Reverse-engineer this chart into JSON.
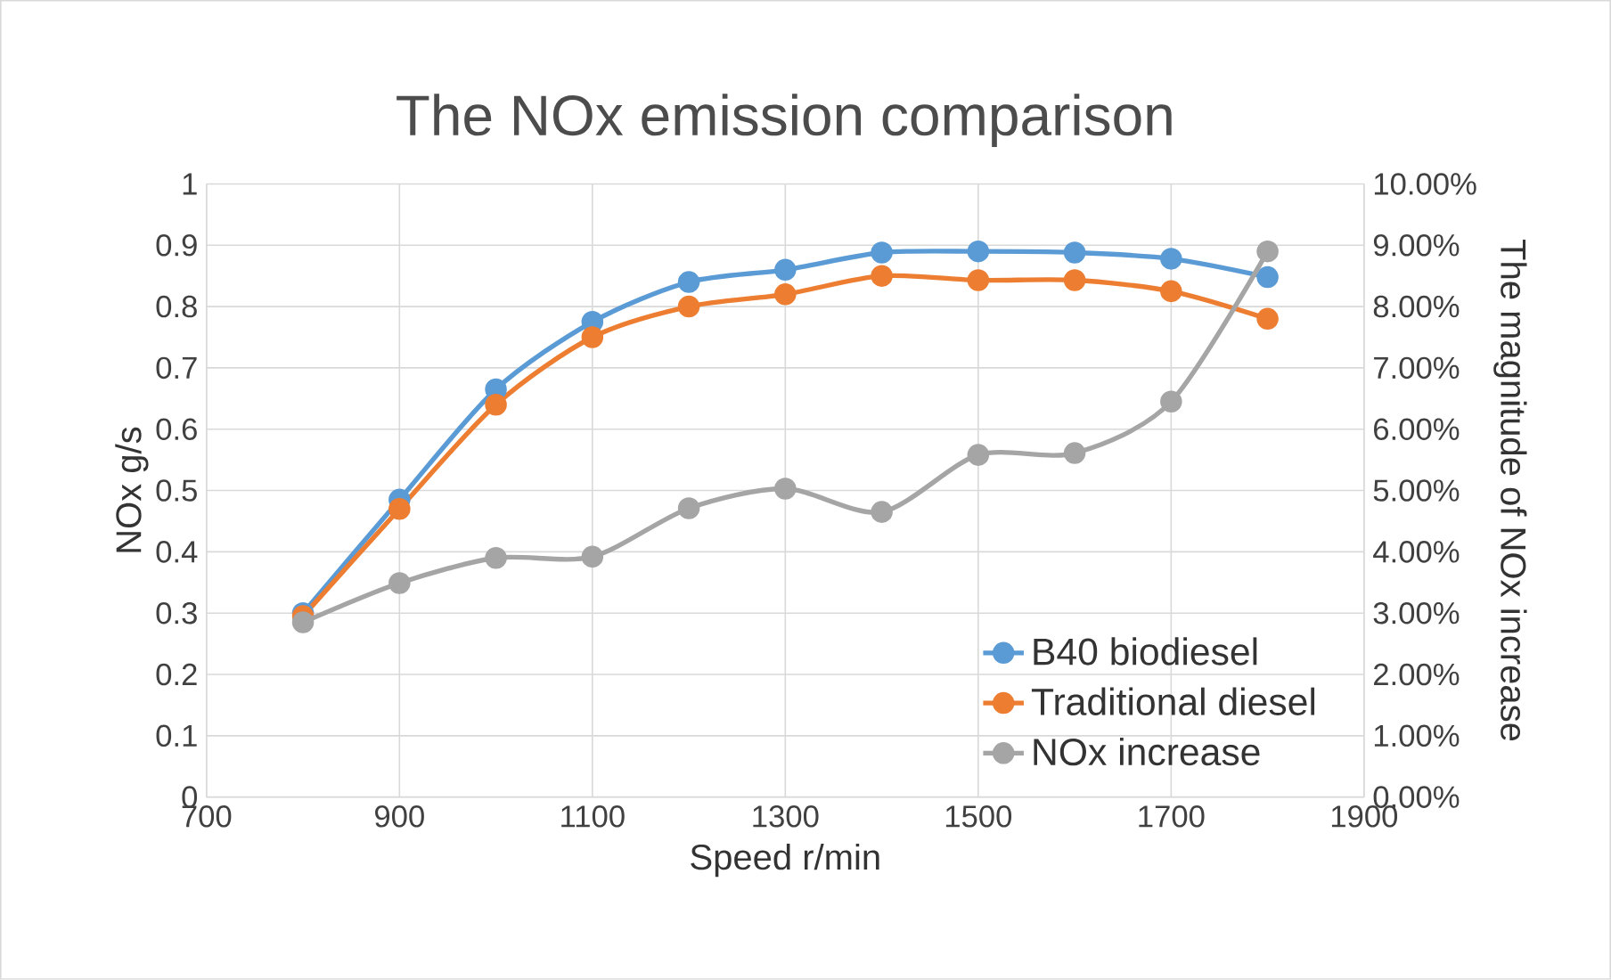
{
  "chart_data": {
    "type": "line",
    "title": "The NOx emission comparison",
    "xlabel": "Speed r/min",
    "ylabel": "NOx g/s",
    "y2label": "The magnitude of NOx increase",
    "x": [
      800,
      900,
      1000,
      1100,
      1200,
      1300,
      1400,
      1500,
      1600,
      1700,
      1800
    ],
    "series": [
      {
        "name": "B40 biodiesel",
        "color": "#5b9bd5",
        "values": [
          0.3,
          0.485,
          0.665,
          0.775,
          0.84,
          0.86,
          0.888,
          0.89,
          0.888,
          0.878,
          0.848
        ]
      },
      {
        "name": "Traditional diesel",
        "color": "#ed7d31",
        "values": [
          0.295,
          0.47,
          0.64,
          0.75,
          0.8,
          0.82,
          0.85,
          0.843,
          0.843,
          0.825,
          0.78
        ]
      },
      {
        "name": "NOx increase",
        "color": "#a5a5a5",
        "axis": "y2",
        "values": [
          2.85,
          3.49,
          3.9,
          3.92,
          4.71,
          5.03,
          4.65,
          5.58,
          5.61,
          6.45,
          8.9
        ]
      }
    ],
    "xlim": [
      700,
      1900
    ],
    "xticks": [
      700,
      900,
      1100,
      1300,
      1500,
      1700,
      1900
    ],
    "ylim": [
      0,
      1
    ],
    "yticks": [
      0,
      0.1,
      0.2,
      0.3,
      0.4,
      0.5,
      0.6,
      0.7,
      0.8,
      0.9,
      1
    ],
    "y2lim": [
      0,
      10
    ],
    "y2ticks": [
      {
        "value": 0,
        "label": "0.00%"
      },
      {
        "value": 1,
        "label": "1.00%"
      },
      {
        "value": 2,
        "label": "2.00%"
      },
      {
        "value": 3,
        "label": "3.00%"
      },
      {
        "value": 4,
        "label": "4.00%"
      },
      {
        "value": 5,
        "label": "5.00%"
      },
      {
        "value": 6,
        "label": "6.00%"
      },
      {
        "value": 7,
        "label": "7.00%"
      },
      {
        "value": 8,
        "label": "8.00%"
      },
      {
        "value": 9,
        "label": "9.00%"
      },
      {
        "value": 10,
        "label": "10.00%"
      }
    ],
    "grid": true,
    "legend": "bottom right",
    "marker": "circle",
    "line_style": "solid"
  }
}
